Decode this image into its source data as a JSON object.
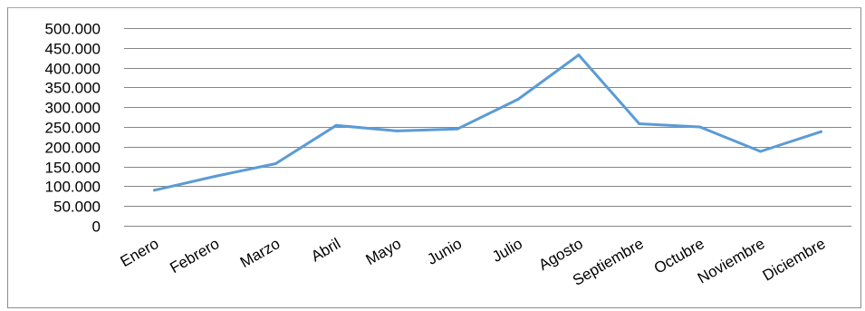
{
  "chart_data": {
    "type": "line",
    "title": "",
    "xlabel": "",
    "ylabel": "",
    "categories": [
      "Enero",
      "Febrero",
      "Marzo",
      "Abril",
      "Mayo",
      "Junio",
      "Julio",
      "Agosto",
      "Septiembre",
      "Octubre",
      "Noviembre",
      "Diciembre"
    ],
    "series": [
      {
        "values": [
          90000,
          125000,
          157000,
          254000,
          240000,
          245000,
          320000,
          432000,
          258000,
          250000,
          188000,
          238000
        ],
        "color": "#5b9bd5"
      }
    ],
    "ylim": [
      0,
      500000
    ],
    "yticks": [
      0,
      50000,
      100000,
      150000,
      200000,
      250000,
      300000,
      350000,
      400000,
      450000,
      500000
    ],
    "ytick_labels": [
      "0",
      "50.000",
      "100.000",
      "150.000",
      "200.000",
      "250.000",
      "300.000",
      "350.000",
      "400.000",
      "450.000",
      "500.000"
    ],
    "grid": true,
    "legend": "none"
  }
}
